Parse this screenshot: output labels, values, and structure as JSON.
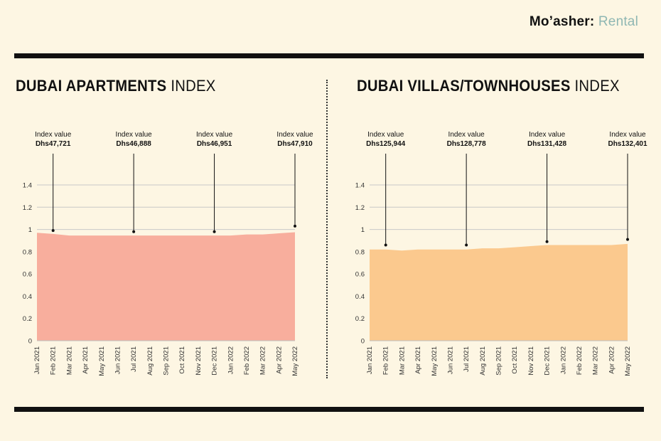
{
  "brand": {
    "name": "Mo’asher",
    "separator": ":",
    "section": "Rental",
    "section_color": "#8fb7b3"
  },
  "colors": {
    "background": "#fdf6e3",
    "apartments_fill": "#f8ae9d",
    "villas_fill": "#fbc98e",
    "gridline": "#c8c8c8"
  },
  "chart_data": [
    {
      "type": "area",
      "title_bold": "DUBAI APARTMENTS",
      "title_light": "INDEX",
      "xlabel": "",
      "ylabel": "",
      "categories": [
        "Jan 2021",
        "Feb 2021",
        "Mar 2021",
        "Apr 2021",
        "May 2021",
        "Jun 2021",
        "Jul 2021",
        "Aug 2021",
        "Sep 2021",
        "Oct 2021",
        "Nov 2021",
        "Dec 2021",
        "Jan 2022",
        "Feb 2022",
        "Mar 2022",
        "Apr 2022",
        "May 2022"
      ],
      "values": [
        0.97,
        0.96,
        0.945,
        0.945,
        0.945,
        0.945,
        0.945,
        0.945,
        0.945,
        0.945,
        0.945,
        0.945,
        0.945,
        0.955,
        0.955,
        0.965,
        0.975
      ],
      "yticks": [
        "0",
        "0.2",
        "0.4",
        "0.6",
        "0.8",
        "1",
        "1.2",
        "1.4"
      ],
      "ylim": [
        0,
        1.4
      ],
      "grid": true,
      "annotations": [
        {
          "category_index": 1,
          "marker_y": 0.99,
          "caption": "Index value",
          "value": "Dhs47,721"
        },
        {
          "category_index": 6,
          "marker_y": 0.98,
          "caption": "Index value",
          "value": "Dhs46,888"
        },
        {
          "category_index": 11,
          "marker_y": 0.98,
          "caption": "Index value",
          "value": "Dhs46,951"
        },
        {
          "category_index": 16,
          "marker_y": 1.03,
          "caption": "Index value",
          "value": "Dhs47,910"
        }
      ]
    },
    {
      "type": "area",
      "title_bold": "DUBAI VILLAS/TOWNHOUSES",
      "title_light": "INDEX",
      "xlabel": "",
      "ylabel": "",
      "categories": [
        "Jan 2021",
        "Feb 2021",
        "Mar 2021",
        "Apr 2021",
        "May 2021",
        "Jun 2021",
        "Jul 2021",
        "Aug 2021",
        "Sep 2021",
        "Oct 2021",
        "Nov 2021",
        "Dec 2021",
        "Jan 2022",
        "Feb 2022",
        "Mar 2022",
        "Apr 2022",
        "May 2022"
      ],
      "values": [
        0.82,
        0.82,
        0.81,
        0.82,
        0.82,
        0.82,
        0.82,
        0.83,
        0.83,
        0.84,
        0.85,
        0.86,
        0.86,
        0.86,
        0.86,
        0.86,
        0.87
      ],
      "yticks": [
        "0",
        "0.2",
        "0.4",
        "0.6",
        "0.8",
        "1",
        "1.2",
        "1.4"
      ],
      "ylim": [
        0,
        1.4
      ],
      "grid": true,
      "annotations": [
        {
          "category_index": 1,
          "marker_y": 0.86,
          "caption": "Index value",
          "value": "Dhs125,944"
        },
        {
          "category_index": 6,
          "marker_y": 0.86,
          "caption": "Index value",
          "value": "Dhs128,778"
        },
        {
          "category_index": 11,
          "marker_y": 0.89,
          "caption": "Index value",
          "value": "Dhs131,428"
        },
        {
          "category_index": 16,
          "marker_y": 0.91,
          "caption": "Index value",
          "value": "Dhs132,401"
        }
      ]
    }
  ]
}
